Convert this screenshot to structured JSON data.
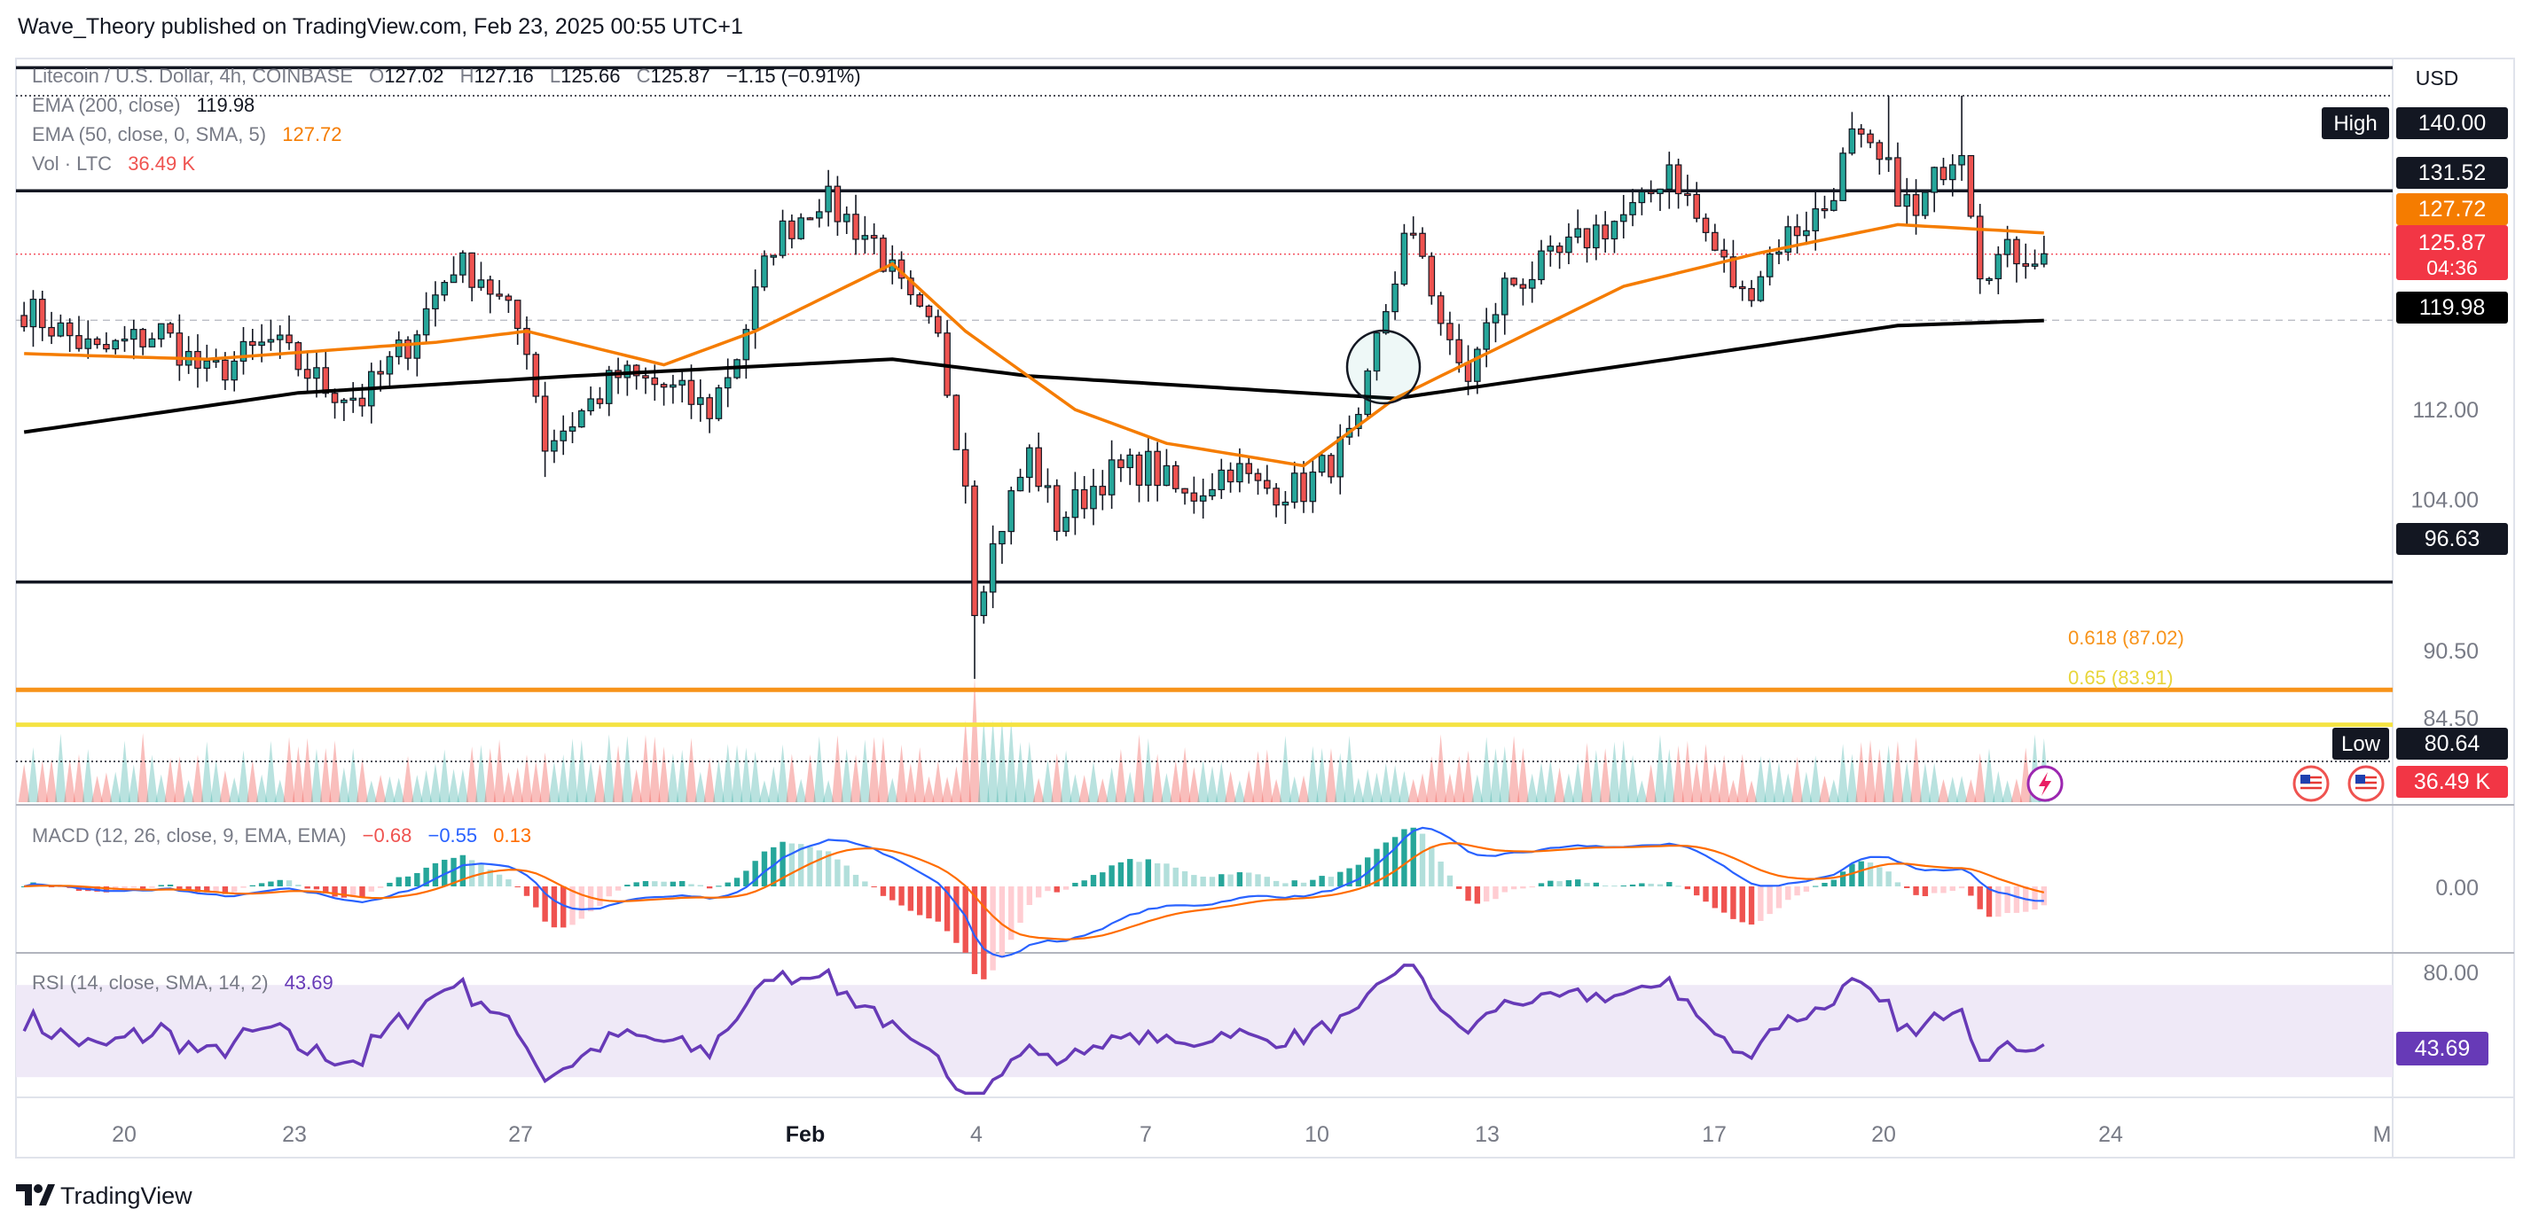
{
  "header": {
    "published": "Wave_Theory published on TradingView.com, Feb 23, 2025 00:55 UTC+1",
    "footer_brand": "TradingView"
  },
  "legend": {
    "symbol": "Litecoin / U.S. Dollar, 4h, COINBASE",
    "o_label": "O",
    "o": "127.02",
    "h_label": "H",
    "h": "127.16",
    "l_label": "L",
    "l": "125.66",
    "c_label": "C",
    "c": "125.87",
    "change": "−1.15 (−0.91%)",
    "ema200_label": "EMA (200, close)",
    "ema200": "119.98",
    "ema50_label": "EMA (50, close, 0, SMA, 5)",
    "ema50": "127.72",
    "vol_label": "Vol · LTC",
    "vol": "36.49 K"
  },
  "colors": {
    "up": "#26a69a",
    "down": "#ef5350",
    "ema50": "#f57c00",
    "ema200": "#000000",
    "fib618": "#f7931a",
    "fib65": "#f5e342",
    "rsi": "#673ab7",
    "rsi_band": "#efe9f7",
    "macd": "#2962ff",
    "signal": "#ff6d00"
  },
  "chart_data": {
    "type": "candlestick",
    "title": "Litecoin / U.S. Dollar, 4h, COINBASE",
    "currency": "USD",
    "ylim": [
      77,
      143
    ],
    "y_ticks": [
      "112.00",
      "104.00",
      "90.50",
      "84.50"
    ],
    "x_ticks": [
      "20",
      "23",
      "27",
      "Feb",
      "4",
      "7",
      "10",
      "13",
      "17",
      "20",
      "24",
      "M"
    ],
    "bar_count": 222,
    "waypoints": [
      [
        0,
        121
      ],
      [
        8,
        117
      ],
      [
        15,
        119
      ],
      [
        20,
        115
      ],
      [
        27,
        118
      ],
      [
        33,
        114
      ],
      [
        37,
        113
      ],
      [
        42,
        118
      ],
      [
        47,
        125
      ],
      [
        50,
        124
      ],
      [
        55,
        118
      ],
      [
        57,
        109
      ],
      [
        60,
        111
      ],
      [
        65,
        115
      ],
      [
        70,
        114
      ],
      [
        75,
        112
      ],
      [
        78,
        117
      ],
      [
        82,
        127
      ],
      [
        87,
        131
      ],
      [
        90,
        129
      ],
      [
        93,
        127
      ],
      [
        97,
        121
      ],
      [
        100,
        118
      ],
      [
        103,
        106
      ],
      [
        104,
        95
      ],
      [
        107,
        102
      ],
      [
        110,
        108
      ],
      [
        113,
        102
      ],
      [
        118,
        106
      ],
      [
        123,
        107
      ],
      [
        127,
        104
      ],
      [
        132,
        107
      ],
      [
        135,
        105
      ],
      [
        140,
        105
      ],
      [
        146,
        110
      ],
      [
        148,
        118
      ],
      [
        151,
        127
      ],
      [
        153,
        126
      ],
      [
        156,
        117
      ],
      [
        158,
        115
      ],
      [
        162,
        123
      ],
      [
        167,
        125
      ],
      [
        172,
        128
      ],
      [
        177,
        130
      ],
      [
        180,
        134
      ],
      [
        183,
        129
      ],
      [
        188,
        122
      ],
      [
        192,
        127
      ],
      [
        197,
        130
      ],
      [
        200,
        136
      ],
      [
        204,
        133
      ],
      [
        207,
        129
      ],
      [
        210,
        134
      ],
      [
        212,
        136
      ],
      [
        214,
        125
      ],
      [
        218,
        126
      ],
      [
        222,
        125.87
      ]
    ],
    "ema50_waypoints": [
      [
        0,
        117
      ],
      [
        20,
        116.5
      ],
      [
        45,
        118
      ],
      [
        55,
        119
      ],
      [
        70,
        116
      ],
      [
        80,
        119
      ],
      [
        95,
        125
      ],
      [
        103,
        119
      ],
      [
        115,
        112
      ],
      [
        125,
        109
      ],
      [
        140,
        107
      ],
      [
        150,
        113
      ],
      [
        160,
        117
      ],
      [
        175,
        123
      ],
      [
        190,
        126
      ],
      [
        205,
        128.5
      ],
      [
        222,
        127.72
      ]
    ],
    "ema200_waypoints": [
      [
        0,
        110
      ],
      [
        30,
        113.5
      ],
      [
        60,
        115
      ],
      [
        95,
        116.5
      ],
      [
        110,
        115
      ],
      [
        150,
        113
      ],
      [
        180,
        116.5
      ],
      [
        205,
        119.5
      ],
      [
        222,
        119.98
      ]
    ],
    "levels": [
      {
        "name": "top",
        "value": 142.5,
        "label": ""
      },
      {
        "name": "resistance",
        "value": 131.52,
        "label": "131.52"
      },
      {
        "name": "support",
        "value": 96.63,
        "label": "96.63"
      }
    ],
    "high": {
      "label": "High",
      "value": "140.00"
    },
    "low": {
      "label": "Low",
      "value": "80.64"
    },
    "fib": [
      {
        "label": "0.618 (87.02)",
        "value": 87.02
      },
      {
        "label": "0.65 (83.91)",
        "value": 83.91
      }
    ],
    "price_labels": {
      "ema50": "127.72",
      "close": "125.87",
      "countdown": "04:36",
      "ema200": "119.98",
      "volume": "36.49 K"
    },
    "macd": {
      "label": "MACD (12, 26, close, 9, EMA, EMA)",
      "hist": "−0.68",
      "macd": "−0.55",
      "signal": "0.13",
      "zero_label": "0.00",
      "ylim": [
        -3.5,
        3.5
      ]
    },
    "rsi": {
      "label": "RSI (14, close, SMA, 14, 2)",
      "value": "43.69",
      "tick_label": "80.00",
      "ylim": [
        22,
        82
      ],
      "band": [
        30,
        70
      ]
    }
  }
}
